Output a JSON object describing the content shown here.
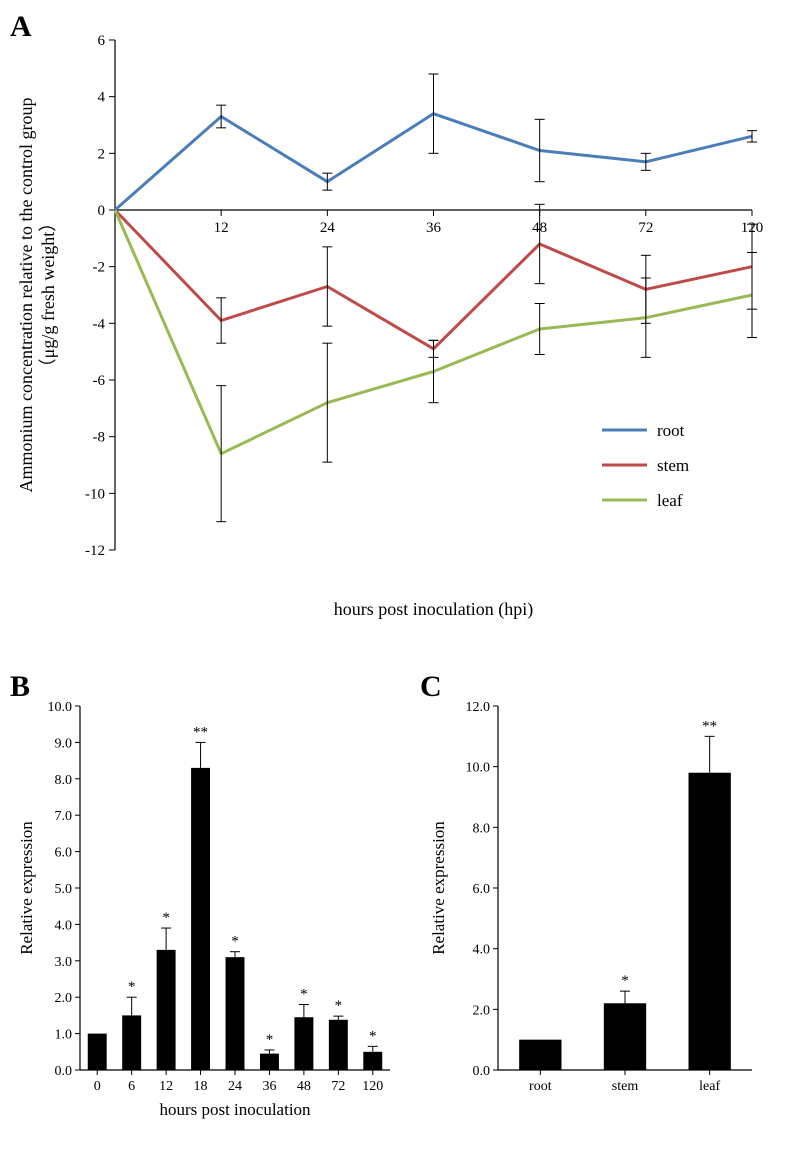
{
  "panelA": {
    "label": "A",
    "type": "line",
    "x_categories": [
      "12",
      "24",
      "36",
      "48",
      "72",
      "120"
    ],
    "ylim": [
      -12,
      6
    ],
    "ytick_step": 2,
    "ylabel_line1": "Ammonium concentration relative to the control group",
    "ylabel_line2": "（μg/g fresh weight）",
    "xlabel": "hours post inoculation (hpi)",
    "background_color": "#ffffff",
    "axis_color": "#000000",
    "label_fontsize": 18,
    "tick_fontsize": 15,
    "line_width": 3,
    "series": [
      {
        "name": "root",
        "color": "#4a7ebb",
        "points": [
          {
            "x": 0,
            "y": 0.0,
            "errLo": 0,
            "errHi": 0
          },
          {
            "x": 1,
            "y": 3.3,
            "errLo": 0.4,
            "errHi": 0.4
          },
          {
            "x": 2,
            "y": 1.0,
            "errLo": 0.3,
            "errHi": 0.3
          },
          {
            "x": 3,
            "y": 3.4,
            "errLo": 1.4,
            "errHi": 1.4
          },
          {
            "x": 4,
            "y": 2.1,
            "errLo": 1.1,
            "errHi": 1.1
          },
          {
            "x": 5,
            "y": 1.7,
            "errLo": 0.3,
            "errHi": 0.3
          },
          {
            "x": 6,
            "y": 2.6,
            "errLo": 0.2,
            "errHi": 0.2
          }
        ]
      },
      {
        "name": "stem",
        "color": "#be4b48",
        "points": [
          {
            "x": 0,
            "y": 0.0,
            "errLo": 0,
            "errHi": 0
          },
          {
            "x": 1,
            "y": -3.9,
            "errLo": 0.8,
            "errHi": 0.8
          },
          {
            "x": 2,
            "y": -2.7,
            "errLo": 1.4,
            "errHi": 1.4
          },
          {
            "x": 3,
            "y": -4.9,
            "errLo": 0.3,
            "errHi": 0.3
          },
          {
            "x": 4,
            "y": -1.2,
            "errLo": 1.4,
            "errHi": 1.4
          },
          {
            "x": 5,
            "y": -2.8,
            "errLo": 1.2,
            "errHi": 1.2
          },
          {
            "x": 6,
            "y": -2.0,
            "errLo": 1.5,
            "errHi": 1.5
          }
        ]
      },
      {
        "name": "leaf",
        "color": "#98b954",
        "points": [
          {
            "x": 0,
            "y": 0.0,
            "errLo": 0,
            "errHi": 0
          },
          {
            "x": 1,
            "y": -8.6,
            "errLo": 2.4,
            "errHi": 2.4
          },
          {
            "x": 2,
            "y": -6.8,
            "errLo": 2.1,
            "errHi": 2.1
          },
          {
            "x": 3,
            "y": -5.7,
            "errLo": 1.1,
            "errHi": 1.1
          },
          {
            "x": 4,
            "y": -4.2,
            "errLo": 0.9,
            "errHi": 0.9
          },
          {
            "x": 5,
            "y": -3.8,
            "errLo": 1.4,
            "errHi": 1.4
          },
          {
            "x": 6,
            "y": -3.0,
            "errLo": 1.5,
            "errHi": 1.5
          }
        ]
      }
    ],
    "legend": {
      "items": [
        "root",
        "stem",
        "leaf"
      ],
      "colors": [
        "#4a7ebb",
        "#be4b48",
        "#98b954"
      ],
      "fontsize": 17
    }
  },
  "panelB": {
    "label": "B",
    "type": "bar",
    "categories": [
      "0",
      "6",
      "12",
      "18",
      "24",
      "36",
      "48",
      "72",
      "120"
    ],
    "values": [
      1.0,
      1.5,
      3.3,
      8.3,
      3.1,
      0.45,
      1.45,
      1.38,
      0.5
    ],
    "errors": [
      0,
      0.5,
      0.6,
      0.7,
      0.15,
      0.1,
      0.35,
      0.1,
      0.15
    ],
    "sig": [
      "",
      "*",
      "*",
      "**",
      "*",
      "*",
      "*",
      "*",
      "*"
    ],
    "ylim": [
      0.0,
      10.0
    ],
    "ytick_step": 1.0,
    "ylabel": "Relative expression",
    "xlabel": "hours post inoculation",
    "bar_color": "#000000",
    "axis_color": "#000000",
    "tick_fontsize": 14,
    "label_fontsize": 17,
    "bar_width": 0.55
  },
  "panelC": {
    "label": "C",
    "type": "bar",
    "categories": [
      "root",
      "stem",
      "leaf"
    ],
    "values": [
      1.0,
      2.2,
      9.8
    ],
    "errors": [
      0,
      0.4,
      1.2
    ],
    "sig": [
      "",
      "*",
      "**"
    ],
    "ylim": [
      0.0,
      12.0
    ],
    "ytick_step": 2.0,
    "ylabel": "Relative expression",
    "bar_color": "#000000",
    "axis_color": "#000000",
    "tick_fontsize": 14,
    "label_fontsize": 17,
    "bar_width": 0.5
  }
}
